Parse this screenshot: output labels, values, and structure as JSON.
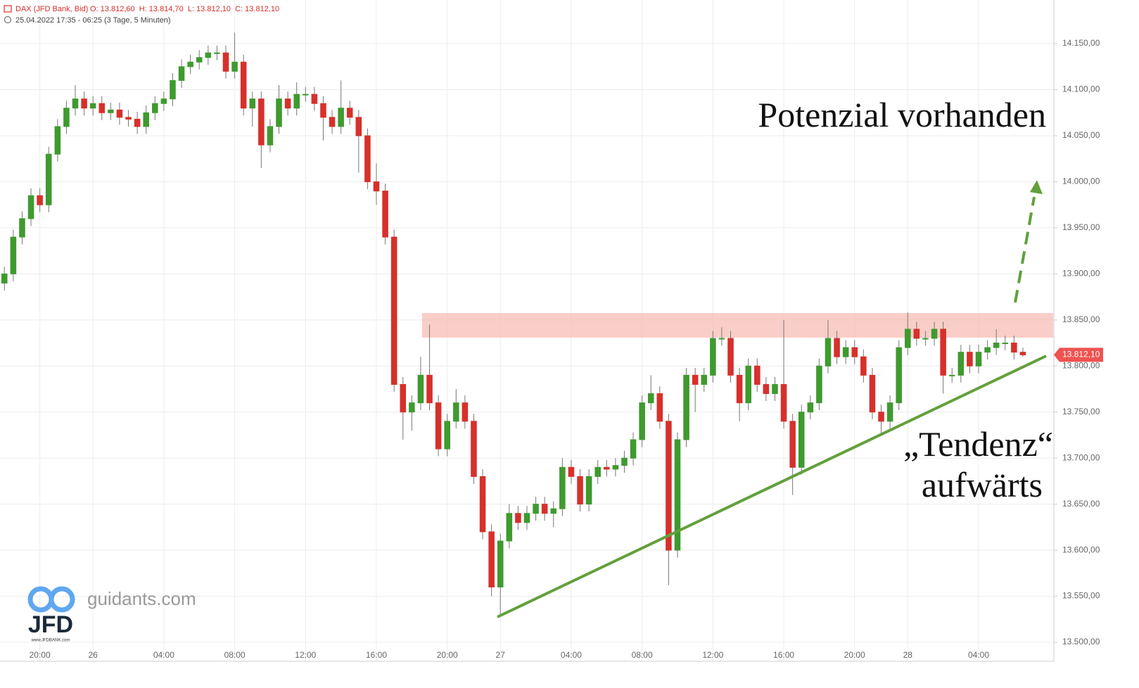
{
  "chart_data": {
    "type": "candlestick",
    "header": {
      "symbol": "DAX (JFD Bank, Bid)",
      "ohlc": "O: 13.812,60  H: 13.814,70  L: 13.812,10  C: 13.812,10",
      "range": "25.04.2022 17:35 - 06:25",
      "interval": "(3 Tage, 5 Minuten)"
    },
    "annotations": [
      "Potenzial vorhanden",
      "„Tendenz“",
      "aufwärts"
    ],
    "logo": {
      "site": "guidants.com",
      "brand": "JFD",
      "url": "www.JFDBANK.com"
    },
    "last_price": {
      "value": 13812.1,
      "label": "13.812,10"
    },
    "up_color": "#3f9a2f",
    "down_color": "#d7302b",
    "grid": true,
    "ylim": [
      13479.4,
      14197.4
    ],
    "yticks": [
      {
        "value": 13500,
        "label": "13.500,00"
      },
      {
        "value": 13550,
        "label": "13.550,00"
      },
      {
        "value": 13600,
        "label": "13.600,00"
      },
      {
        "value": 13650,
        "label": "13.650,00"
      },
      {
        "value": 13700,
        "label": "13.700,00"
      },
      {
        "value": 13750,
        "label": "13.750,00"
      },
      {
        "value": 13800,
        "label": "13.800,00"
      },
      {
        "value": 13850,
        "label": "13.850,00"
      },
      {
        "value": 13900,
        "label": "13.900,00"
      },
      {
        "value": 13950,
        "label": "13.950,00"
      },
      {
        "value": 14000,
        "label": "14.000,00"
      },
      {
        "value": 14050,
        "label": "14.050,00"
      },
      {
        "value": 14100,
        "label": "14.100,00"
      },
      {
        "value": 14150,
        "label": "14.150,00"
      }
    ],
    "categories": [
      null,
      null,
      null,
      null,
      "20:00",
      null,
      null,
      null,
      null,
      null,
      "26",
      null,
      null,
      null,
      null,
      null,
      null,
      null,
      "04:00",
      null,
      null,
      null,
      null,
      null,
      null,
      null,
      "08:00",
      null,
      null,
      null,
      null,
      null,
      null,
      null,
      "12:00",
      null,
      null,
      null,
      null,
      null,
      null,
      null,
      "16:00",
      null,
      null,
      null,
      null,
      null,
      null,
      null,
      "20:00",
      null,
      null,
      null,
      null,
      null,
      "27",
      null,
      null,
      null,
      null,
      null,
      null,
      null,
      "04:00",
      null,
      null,
      null,
      null,
      null,
      null,
      null,
      "08:00",
      null,
      null,
      null,
      null,
      null,
      null,
      null,
      "12:00",
      null,
      null,
      null,
      null,
      null,
      null,
      null,
      "16:00",
      null,
      null,
      null,
      null,
      null,
      null,
      null,
      "20:00",
      null,
      null,
      null,
      null,
      null,
      "28",
      null,
      null,
      null,
      null,
      null,
      null,
      null,
      "04:00",
      null,
      null,
      null,
      null,
      null,
      null,
      null,
      null
    ],
    "open": [
      13890,
      13900,
      13940,
      13960,
      13985,
      13975,
      14030,
      14060,
      14080,
      14090,
      14080,
      14085,
      14075,
      14078,
      14070,
      14068,
      14060,
      14075,
      14085,
      14090,
      14110,
      14125,
      14130,
      14135,
      14140,
      14140,
      14120,
      14130,
      14080,
      14090,
      14040,
      14060,
      14090,
      14080,
      14095,
      14095,
      14085,
      14070,
      14060,
      14080,
      14070,
      14050,
      14000,
      13990,
      13940,
      13780,
      13750,
      13760,
      13790,
      13760,
      13710,
      13740,
      13760,
      13740,
      13680,
      13620,
      13560,
      13610,
      13640,
      13630,
      13640,
      13650,
      13640,
      13645,
      13690,
      13680,
      13650,
      13680,
      13690,
      13688,
      13692,
      13700,
      13720,
      13760,
      13770,
      13740,
      13600,
      13720,
      13790,
      13780,
      13790,
      13830,
      13830,
      13790,
      13760,
      13800,
      13780,
      13770,
      13780,
      13740,
      13690,
      13750,
      13760,
      13800,
      13830,
      13810,
      13820,
      13810,
      13790,
      13750,
      13740,
      13760,
      13820,
      13840,
      13830,
      13830,
      13840,
      13790,
      13790,
      13815,
      13800,
      13815,
      13820,
      13825,
      13825,
      13815,
      null,
      null,
      null
    ],
    "high": [
      13908,
      13948,
      13968,
      13993,
      13993,
      14038,
      14068,
      14088,
      14105,
      14098,
      14093,
      14093,
      14086,
      14086,
      14078,
      14076,
      14083,
      14093,
      14098,
      14118,
      14133,
      14138,
      14143,
      14148,
      14148,
      14148,
      14162,
      14138,
      14098,
      14098,
      14068,
      14105,
      14098,
      14108,
      14103,
      14103,
      14093,
      14078,
      14110,
      14088,
      14078,
      14058,
      14020,
      13998,
      13948,
      13788,
      13768,
      13810,
      13845,
      13768,
      13748,
      13775,
      13768,
      13748,
      13688,
      13628,
      13618,
      13650,
      13648,
      13648,
      13658,
      13658,
      13653,
      13700,
      13698,
      13688,
      13688,
      13698,
      13698,
      13700,
      13708,
      13728,
      13768,
      13790,
      13778,
      13748,
      13728,
      13798,
      13798,
      13798,
      13838,
      13842,
      13838,
      13798,
      13808,
      13808,
      13788,
      13788,
      13850,
      13748,
      13758,
      13768,
      13808,
      13850,
      13838,
      13828,
      13828,
      13818,
      13798,
      13758,
      13768,
      13828,
      13858,
      13848,
      13838,
      13848,
      13848,
      13798,
      13823,
      13823,
      13823,
      13828,
      13840,
      13833,
      13833,
      13820,
      null,
      null,
      null
    ],
    "low": [
      13882,
      13892,
      13932,
      13952,
      13967,
      13967,
      14022,
      14052,
      14072,
      14072,
      14072,
      14067,
      14067,
      14062,
      14060,
      14052,
      14052,
      14067,
      14077,
      14082,
      14102,
      14117,
      14122,
      14127,
      14132,
      14112,
      14112,
      14072,
      14060,
      14015,
      14032,
      14052,
      14072,
      14072,
      14087,
      14077,
      14045,
      14052,
      14052,
      14062,
      14010,
      13992,
      13975,
      13932,
      13772,
      13720,
      13730,
      13752,
      13752,
      13702,
      13702,
      13732,
      13732,
      13672,
      13612,
      13550,
      13530,
      13602,
      13622,
      13622,
      13632,
      13632,
      13625,
      13637,
      13672,
      13642,
      13642,
      13672,
      13680,
      13680,
      13684,
      13692,
      13712,
      13752,
      13732,
      13562,
      13592,
      13712,
      13750,
      13772,
      13782,
      13822,
      13782,
      13740,
      13752,
      13772,
      13762,
      13762,
      13732,
      13660,
      13682,
      13742,
      13752,
      13792,
      13802,
      13802,
      13802,
      13782,
      13742,
      13725,
      13732,
      13752,
      13812,
      13822,
      13822,
      13822,
      13770,
      13782,
      13782,
      13792,
      13792,
      13807,
      13812,
      13817,
      13807,
      13810,
      null,
      null,
      null
    ],
    "close": [
      13900,
      13940,
      13960,
      13985,
      13975,
      14030,
      14060,
      14080,
      14090,
      14080,
      14085,
      14075,
      14078,
      14070,
      14068,
      14060,
      14075,
      14085,
      14090,
      14110,
      14125,
      14130,
      14135,
      14140,
      14140,
      14120,
      14130,
      14080,
      14090,
      14040,
      14060,
      14090,
      14080,
      14095,
      14095,
      14085,
      14070,
      14060,
      14080,
      14070,
      14050,
      14000,
      13990,
      13940,
      13780,
      13750,
      13760,
      13790,
      13760,
      13710,
      13740,
      13760,
      13740,
      13680,
      13620,
      13560,
      13610,
      13640,
      13630,
      13640,
      13650,
      13640,
      13645,
      13690,
      13680,
      13650,
      13680,
      13690,
      13688,
      13692,
      13700,
      13720,
      13760,
      13770,
      13740,
      13600,
      13720,
      13790,
      13780,
      13790,
      13830,
      13830,
      13790,
      13760,
      13800,
      13780,
      13770,
      13780,
      13740,
      13690,
      13750,
      13760,
      13800,
      13830,
      13810,
      13820,
      13810,
      13790,
      13750,
      13740,
      13760,
      13820,
      13840,
      13830,
      13830,
      13840,
      13790,
      13790,
      13815,
      13800,
      13815,
      13820,
      13825,
      13825,
      13815,
      13812.1,
      null,
      null,
      null
    ]
  }
}
